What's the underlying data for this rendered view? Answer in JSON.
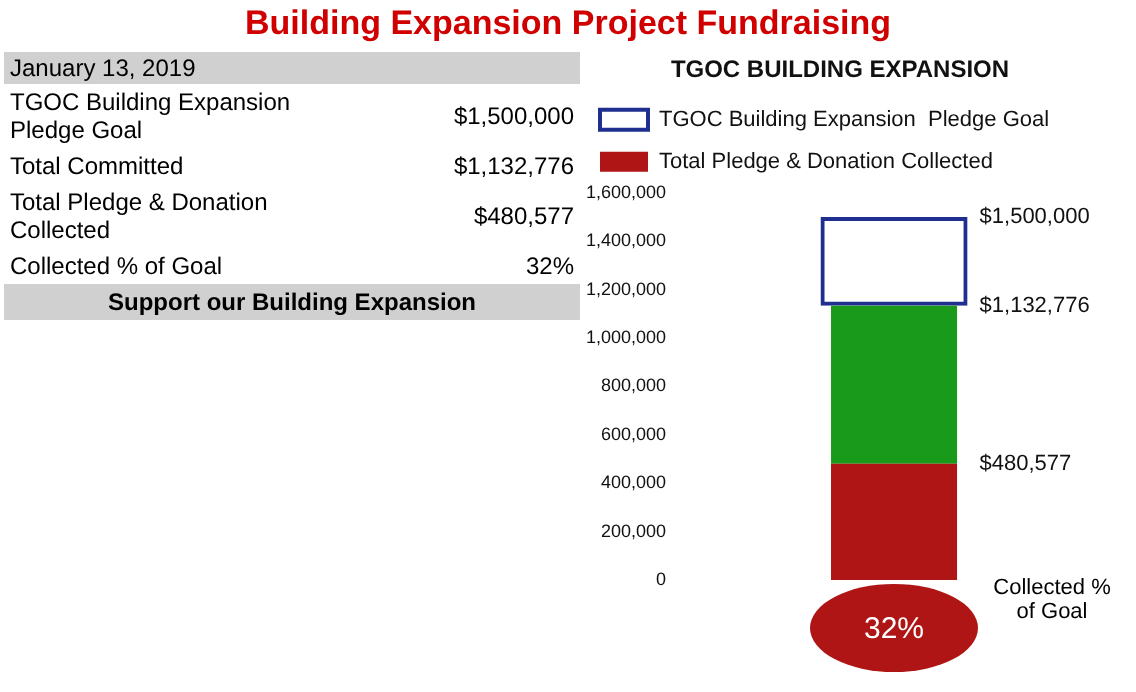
{
  "chart_data": [
    {
      "type": "other",
      "title": "Building Expansion Project Fundraising",
      "subtitle": "January 13, 2019",
      "annotations": [
        "TGOC Building Expansion  Pledge Goal",
        "$1,500,000",
        "Total Committed",
        "$1,132,776",
        "Total Pledge & Donation Collected",
        "$480,577",
        "Collected % of Goal",
        "32%",
        "Support our Building Expansion"
      ]
    },
    {
      "type": "bar",
      "title": "TGOC BUILDING EXPANSION",
      "categories": [
        null
      ],
      "legend": "top",
      "grid": false,
      "stacked": true,
      "ylim": [
        0,
        1600000
      ],
      "yticks": [
        0,
        {
          "value": 200000,
          "label": "200,000"
        },
        {
          "value": 400000,
          "label": "400,000"
        },
        {
          "value": 600000,
          "label": "600,000"
        },
        {
          "value": 800000,
          "label": "800,000"
        },
        {
          "value": 1000000,
          "label": "1,000,000"
        },
        {
          "value": 1200000,
          "label": "1,200,000"
        },
        {
          "value": 1400000,
          "label": "1,400,000"
        },
        {
          "value": 1600000,
          "label": "1,600,000"
        }
      ],
      "series": [
        {
          "name": "Total Pledge & Donation Collected",
          "color": "#b01515",
          "values": [
            480577
          ]
        },
        {
          "color": "#1a9a1a",
          "values": [
            652199
          ]
        },
        {
          "name": "TGOC Building Expansion  Pledge Goal",
          "color": "#1f2f8f",
          "values": [
            367224
          ]
        }
      ],
      "annotations": [
        "$480,577",
        "$1,132,776",
        "$1,500,000",
        "32%",
        "Collected % of Goal"
      ]
    }
  ]
}
